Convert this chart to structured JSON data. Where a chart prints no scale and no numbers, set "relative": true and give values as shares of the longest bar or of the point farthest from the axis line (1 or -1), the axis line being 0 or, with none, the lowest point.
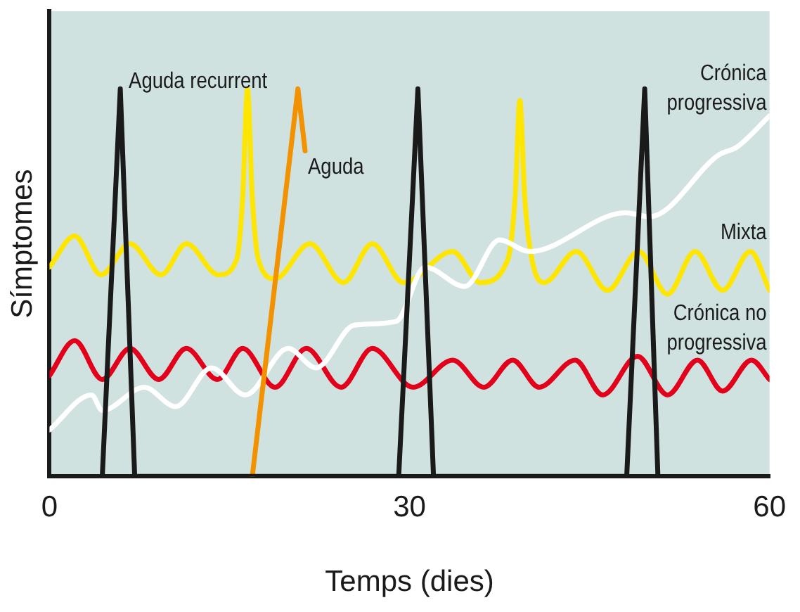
{
  "chart_data": {
    "type": "line",
    "relative": true,
    "xlabel": "Temps (dies)",
    "ylabel": "Símptomes",
    "xlim": [
      0,
      60
    ],
    "xticks": [
      0,
      30,
      60
    ],
    "grid": false,
    "legend": false,
    "marker": "none",
    "line_style": "solid",
    "series": [
      {
        "name": "Aguda recurrent",
        "color": "#1a1a1a",
        "x": [
          4.4,
          5.9,
          7.1,
          29.1,
          30.7,
          32.0,
          48.1,
          49.6,
          50.7
        ],
        "values": [
          0,
          1,
          0,
          0,
          1,
          0,
          0,
          1,
          0
        ]
      },
      {
        "name": "Aguda",
        "color": "#f39200",
        "x": [
          16.9,
          20.7,
          21.3
        ],
        "values": [
          0,
          1,
          0.84
        ]
      },
      {
        "name": "Crónica progressiva",
        "color": "#ffffff",
        "x": [
          0,
          3.5,
          4.4,
          7.9,
          10.5,
          13.5,
          16.3,
          19.9,
          22.2,
          25.4,
          28.9,
          31.3,
          34.6,
          37.5,
          40.0,
          48.0,
          50.0,
          55.8,
          57.3,
          60
        ],
        "values": [
          0.12,
          0.21,
          0.17,
          0.23,
          0.18,
          0.28,
          0.21,
          0.33,
          0.28,
          0.39,
          0.4,
          0.54,
          0.49,
          0.61,
          0.58,
          0.68,
          0.67,
          0.83,
          0.85,
          0.93
        ]
      },
      {
        "name": "Mixta",
        "color": "#ffe600",
        "x": [
          0,
          2.1,
          4.3,
          6.7,
          9.3,
          11.4,
          14.1,
          15.6,
          16.1,
          16.5,
          16.9,
          17.4,
          18.8,
          21.7,
          24.5,
          26.9,
          29.5,
          33.6,
          35.9,
          38.2,
          38.8,
          39.2,
          39.6,
          40.2,
          41.2,
          43.9,
          46.5,
          49.1,
          51.5,
          53.8,
          56.1,
          58.4,
          60
        ],
        "values": [
          0.54,
          0.62,
          0.52,
          0.6,
          0.52,
          0.6,
          0.52,
          0.56,
          0.72,
          1.0,
          0.72,
          0.56,
          0.51,
          0.6,
          0.5,
          0.6,
          0.5,
          0.58,
          0.5,
          0.56,
          0.72,
          0.97,
          0.72,
          0.56,
          0.5,
          0.58,
          0.48,
          0.58,
          0.47,
          0.58,
          0.48,
          0.58,
          0.48
        ]
      },
      {
        "name": "Crónica no progressiva",
        "color": "#e2001a",
        "x": [
          0,
          2.1,
          4.4,
          6.7,
          9.1,
          11.4,
          14.0,
          16.1,
          18.8,
          21.4,
          24.3,
          26.9,
          30.3,
          33.6,
          36.2,
          38.6,
          40.8,
          43.8,
          46.1,
          49.0,
          51.5,
          54.0,
          56.1,
          58.5,
          60
        ],
        "values": [
          0.26,
          0.35,
          0.25,
          0.33,
          0.25,
          0.33,
          0.25,
          0.33,
          0.23,
          0.33,
          0.23,
          0.33,
          0.23,
          0.3,
          0.23,
          0.3,
          0.23,
          0.3,
          0.21,
          0.31,
          0.21,
          0.3,
          0.22,
          0.3,
          0.25
        ]
      }
    ]
  }
}
